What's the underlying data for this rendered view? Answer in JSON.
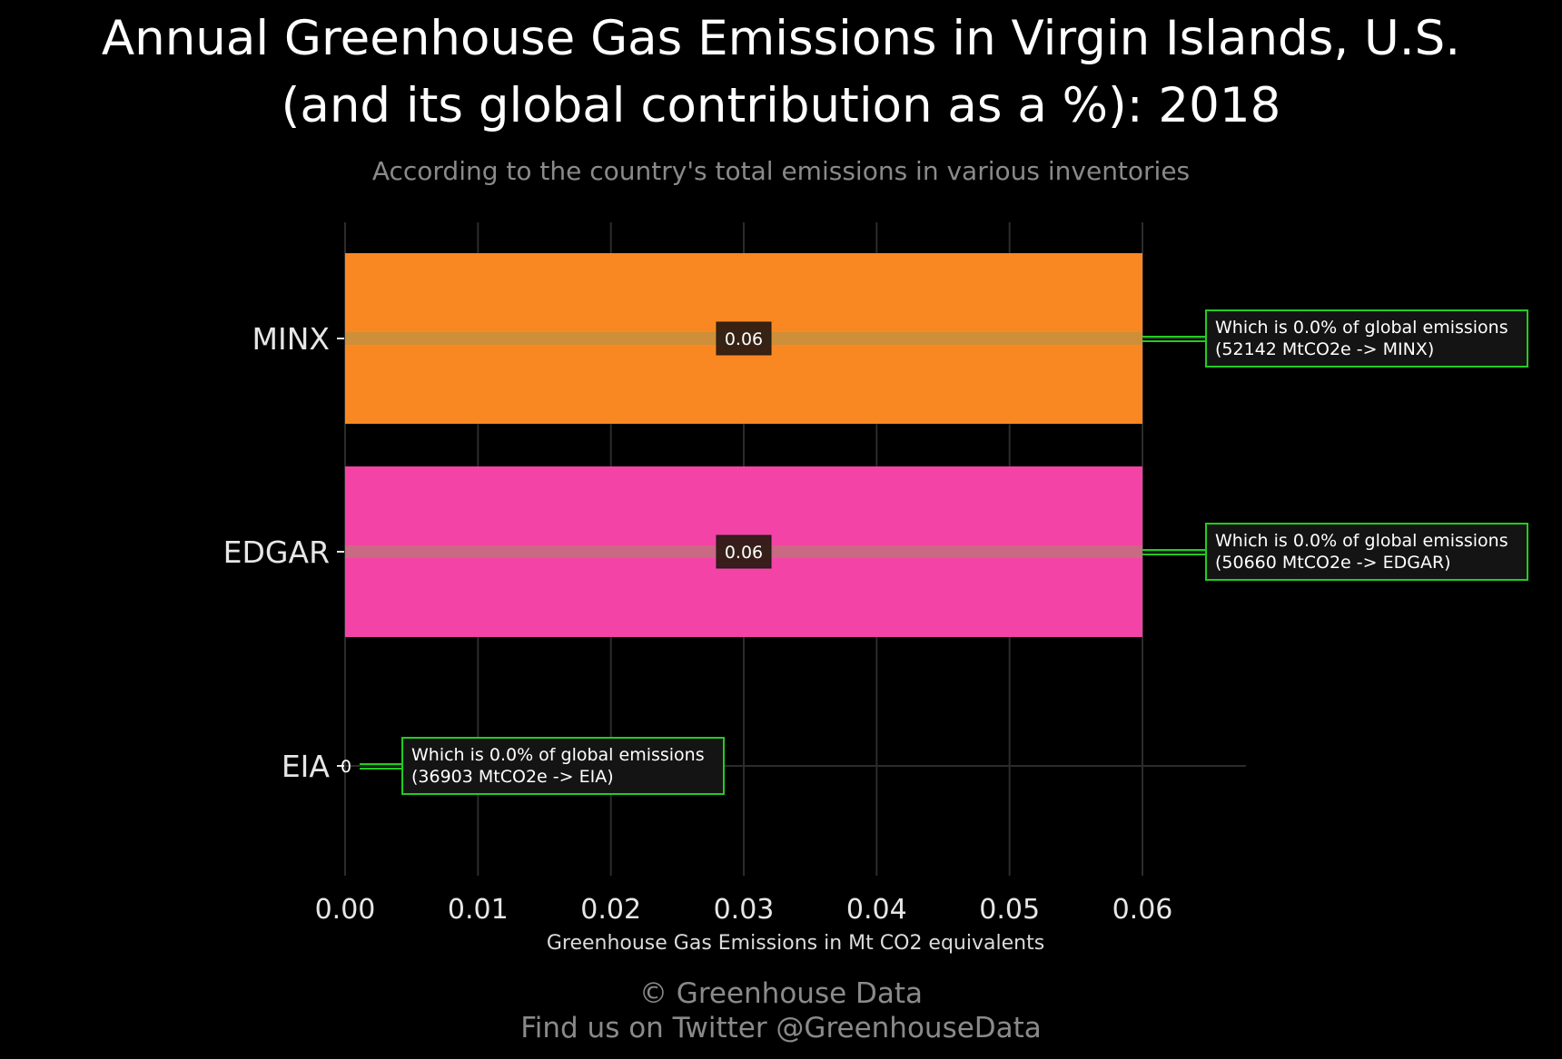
{
  "chart_data": {
    "type": "bar",
    "orientation": "horizontal",
    "title_line1": "Annual Greenhouse Gas Emissions in Virgin Islands, U.S.",
    "title_line2": "(and its global contribution as a %): 2018",
    "subtitle": "According to the country's total emissions in various inventories",
    "xlabel": "Greenhouse Gas Emissions in Mt CO2 equivalents",
    "ylabel": "",
    "xlim": [
      0,
      0.068
    ],
    "xticks": [
      "0.00",
      "0.01",
      "0.02",
      "0.03",
      "0.04",
      "0.05",
      "0.06"
    ],
    "grid": true,
    "categories": [
      "MINX",
      "EDGAR",
      "EIA"
    ],
    "values": [
      0.06,
      0.06,
      0
    ],
    "value_labels": [
      "0.06",
      "0.06",
      "0"
    ],
    "colors": [
      "#fa8822",
      "#f343a6",
      "#333333"
    ],
    "annotations": [
      {
        "line1": "Which is 0.0% of global emissions",
        "line2": "(52142 MtCO2e -> MINX)"
      },
      {
        "line1": "Which is 0.0% of global emissions",
        "line2": "(50660 MtCO2e -> EDGAR)"
      },
      {
        "line1": "Which is 0.0% of global emissions",
        "line2": "(36903 MtCO2e -> EIA)"
      }
    ],
    "annotation_border_color": "#22cc22"
  },
  "footer": {
    "line1": "© Greenhouse Data",
    "line2": "Find us on Twitter @GreenhouseData"
  }
}
